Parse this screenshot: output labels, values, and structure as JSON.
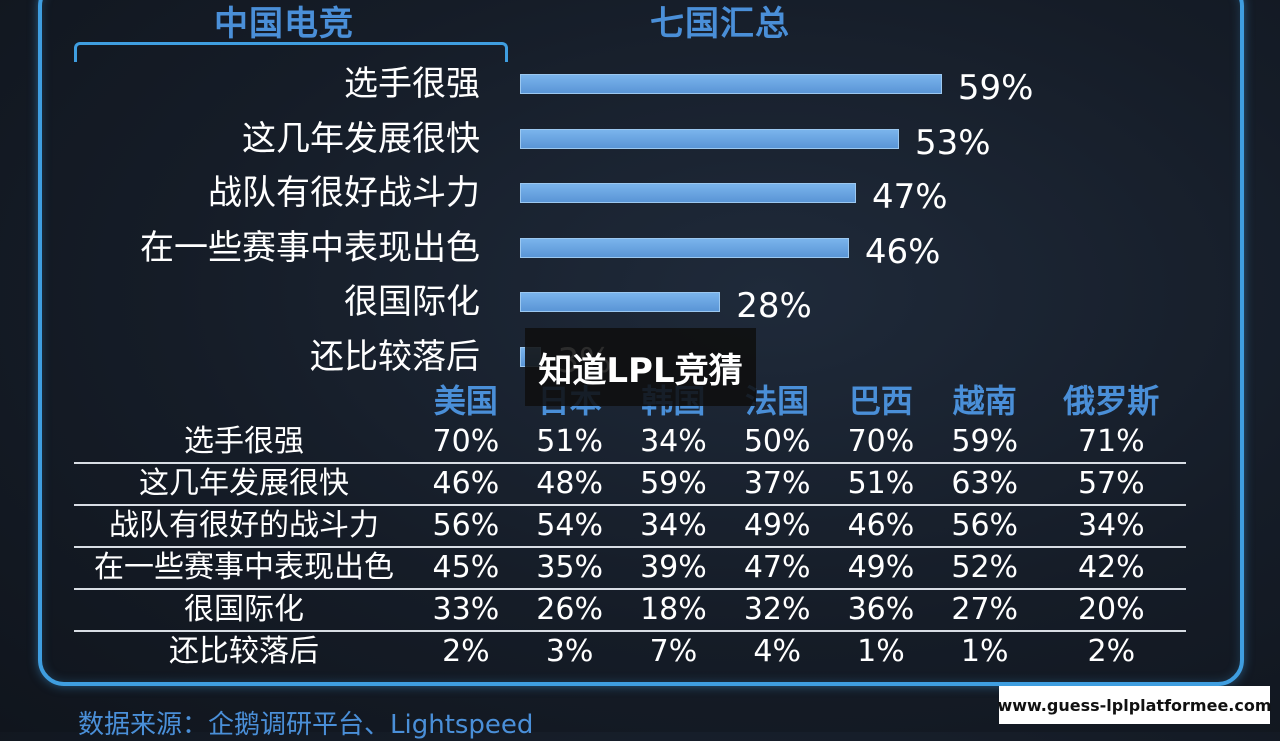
{
  "headings": {
    "left": "中国电竞",
    "right": "七国汇总"
  },
  "chart_data": [
    {
      "type": "bar",
      "orientation": "horizontal",
      "categories": [
        "选手很强",
        "这几年发展很快",
        "战队有很好战斗力",
        "在一些赛事中表现出色",
        "很国际化",
        "还比较落后"
      ],
      "values": [
        59,
        53,
        47,
        46,
        28,
        3
      ],
      "value_labels": [
        "59%",
        "53%",
        "47%",
        "46%",
        "28%",
        "3%"
      ],
      "unit": "%",
      "xlim": [
        0,
        60
      ],
      "grid": false,
      "bar_color": "#6aa5e2"
    },
    {
      "type": "table",
      "columns": [
        "美国",
        "日本",
        "韩国",
        "法国",
        "巴西",
        "越南",
        "俄罗斯"
      ],
      "rows": [
        {
          "label": "选手很强",
          "values": [
            "70%",
            "51%",
            "34%",
            "50%",
            "70%",
            "59%",
            "71%"
          ]
        },
        {
          "label": "这几年发展很快",
          "values": [
            "46%",
            "48%",
            "59%",
            "37%",
            "51%",
            "63%",
            "57%"
          ]
        },
        {
          "label": "战队有很好的战斗力",
          "values": [
            "56%",
            "54%",
            "34%",
            "49%",
            "46%",
            "56%",
            "34%"
          ]
        },
        {
          "label": "在一些赛事中表现出色",
          "values": [
            "45%",
            "35%",
            "39%",
            "47%",
            "49%",
            "52%",
            "42%"
          ]
        },
        {
          "label": "很国际化",
          "values": [
            "33%",
            "26%",
            "18%",
            "32%",
            "36%",
            "27%",
            "20%"
          ]
        },
        {
          "label": "还比较落后",
          "values": [
            "2%",
            "3%",
            "7%",
            "4%",
            "1%",
            "1%",
            "2%"
          ]
        }
      ]
    }
  ],
  "overlay_text": "知道LPL竞猜",
  "source": "数据来源：企鹅调研平台、Lightspeed",
  "url_badge": "www.guess-lplplatformee.com",
  "colors": {
    "accent": "#4a8fd8",
    "frame": "#3f9ee0",
    "bar": "#6aa5e2"
  }
}
